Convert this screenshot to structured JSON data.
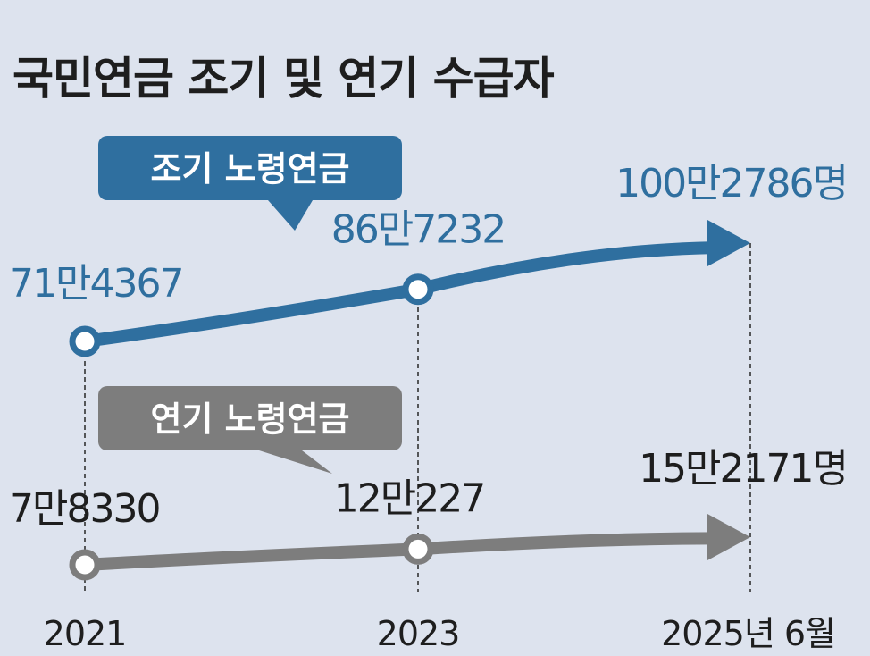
{
  "chart_data": {
    "type": "line",
    "title": "국민연금 조기 및 연기 수급자",
    "categories": [
      "2021",
      "2023",
      "2025년 6월"
    ],
    "series": [
      {
        "name": "조기 노령연금",
        "color": "#2f6f9f",
        "values": [
          714367,
          867232,
          1002786
        ],
        "labels": [
          "71만4367",
          "86만7232",
          "100만2786명"
        ]
      },
      {
        "name": "연기 노령연금",
        "color": "#7d7d7d",
        "values": [
          78330,
          120227,
          152171
        ],
        "labels": [
          "7만8330",
          "12만227",
          "15만2171명"
        ]
      }
    ]
  }
}
